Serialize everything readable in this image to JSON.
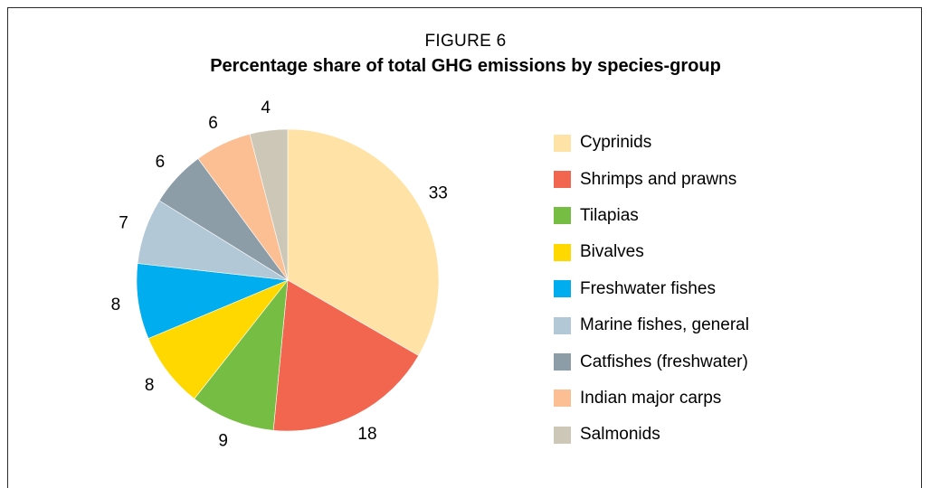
{
  "figure_label": "FIGURE 6",
  "chart_data": {
    "type": "pie",
    "title": "Percentage share of total GHG emissions by species-group",
    "legend_position": "right",
    "categories": [
      "Cyprinids",
      "Shrimps and prawns",
      "Tilapias",
      "Bivalves",
      "Freshwater fishes",
      "Marine fishes, general",
      "Catfishes (freshwater)",
      "Indian major carps",
      "Salmonids"
    ],
    "values": [
      33,
      18,
      9,
      8,
      8,
      7,
      6,
      6,
      4
    ],
    "labels": [
      "33",
      "18",
      "9",
      "8",
      "8",
      "7",
      "6",
      "6",
      "4"
    ],
    "colors": [
      "#FFE2A6",
      "#F26650",
      "#76BD43",
      "#FFD800",
      "#00ADEE",
      "#B2C8D6",
      "#8C9DA8",
      "#FBBF93",
      "#CCC7B7"
    ]
  }
}
